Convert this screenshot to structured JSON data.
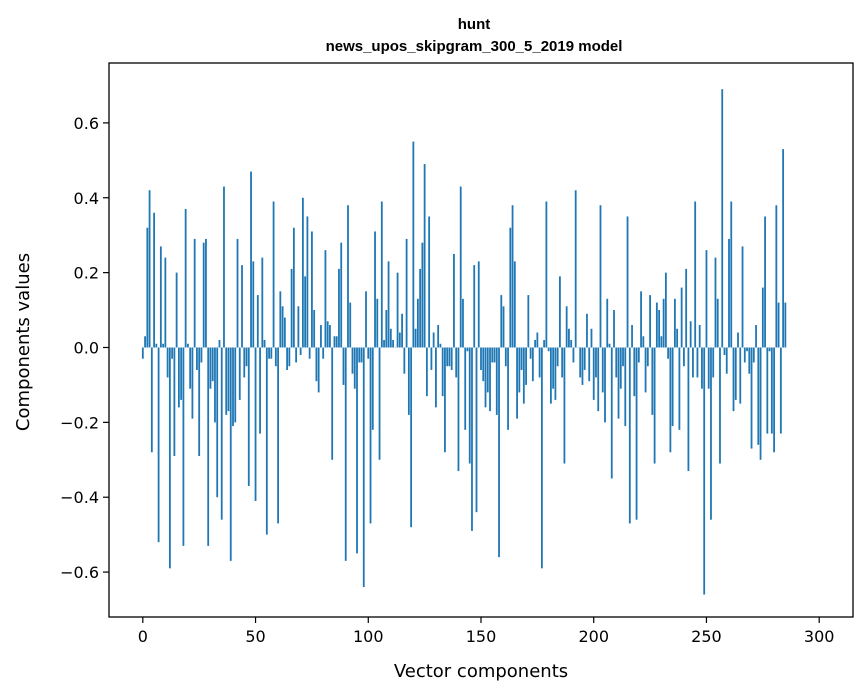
{
  "chart_data": {
    "type": "bar",
    "title_line1": "hunt",
    "title_line2": "news_upos_skipgram_300_5_2019 model",
    "xlabel": "Vector components",
    "ylabel": "Components values",
    "xlim": [
      -15,
      315
    ],
    "ylim": [
      -0.72,
      0.76
    ],
    "xticks": [
      0,
      50,
      100,
      150,
      200,
      250,
      300
    ],
    "yticks": [
      -0.6,
      -0.4,
      -0.2,
      0.0,
      0.2,
      0.4,
      0.6
    ],
    "xtick_labels": [
      "0",
      "50",
      "100",
      "150",
      "200",
      "250",
      "300"
    ],
    "ytick_labels": [
      "−0.6",
      "−0.4",
      "−0.2",
      "0.0",
      "0.2",
      "0.4",
      "0.6"
    ],
    "bar_color": "#1f77b4",
    "grid": false,
    "legend": "none",
    "values": [
      -0.03,
      0.03,
      0.32,
      0.42,
      -0.28,
      0.36,
      0.01,
      -0.52,
      0.27,
      0.01,
      0.24,
      -0.08,
      -0.59,
      -0.03,
      -0.29,
      0.2,
      -0.16,
      -0.14,
      -0.53,
      0.37,
      0.01,
      -0.11,
      -0.19,
      0.29,
      -0.06,
      -0.29,
      -0.04,
      0.28,
      0.29,
      -0.53,
      -0.11,
      -0.09,
      -0.2,
      -0.4,
      0.02,
      -0.46,
      0.43,
      -0.18,
      -0.17,
      -0.57,
      -0.21,
      -0.2,
      0.29,
      -0.14,
      0.22,
      -0.08,
      -0.05,
      -0.37,
      0.47,
      0.23,
      -0.41,
      0.14,
      -0.23,
      0.24,
      0.02,
      -0.5,
      -0.03,
      -0.03,
      0.39,
      -0.05,
      -0.47,
      0.15,
      0.11,
      0.08,
      -0.06,
      -0.05,
      0.21,
      0.32,
      -0.04,
      0.11,
      -0.02,
      0.4,
      0.19,
      0.35,
      -0.03,
      0.31,
      0.1,
      -0.09,
      -0.12,
      0.06,
      -0.03,
      0.26,
      0.07,
      0.06,
      -0.3,
      0.03,
      0.03,
      0.21,
      0.28,
      -0.1,
      -0.57,
      0.38,
      0.12,
      -0.07,
      -0.11,
      -0.55,
      -0.04,
      -0.04,
      -0.64,
      0.15,
      -0.03,
      -0.47,
      -0.22,
      0.31,
      0.13,
      -0.3,
      0.39,
      0.02,
      0.1,
      0.23,
      0.05,
      0.02,
      0.0,
      0.2,
      0.04,
      0.09,
      -0.07,
      0.29,
      -0.18,
      -0.48,
      0.55,
      0.05,
      0.13,
      0.21,
      0.28,
      0.49,
      -0.13,
      0.35,
      -0.06,
      0.04,
      -0.16,
      0.06,
      0.01,
      -0.13,
      -0.28,
      -0.05,
      -0.05,
      -0.06,
      0.25,
      -0.08,
      -0.33,
      0.43,
      0.13,
      -0.22,
      -0.01,
      -0.31,
      -0.49,
      0.22,
      -0.44,
      0.23,
      -0.06,
      -0.09,
      -0.16,
      -0.12,
      -0.17,
      -0.04,
      -0.04,
      -0.18,
      -0.56,
      0.14,
      0.11,
      -0.05,
      -0.22,
      0.32,
      0.38,
      0.23,
      -0.19,
      -0.12,
      -0.06,
      -0.15,
      -0.1,
      0.14,
      -0.03,
      -0.09,
      0.02,
      0.04,
      -0.08,
      -0.59,
      0.02,
      0.39,
      -0.01,
      -0.15,
      -0.11,
      -0.14,
      -0.05,
      0.19,
      -0.08,
      -0.31,
      0.11,
      0.05,
      0.02,
      -0.04,
      0.42,
      0.0,
      -0.08,
      -0.1,
      -0.06,
      0.09,
      -0.09,
      0.05,
      -0.14,
      -0.08,
      -0.17,
      0.38,
      -0.12,
      -0.2,
      0.13,
      0.01,
      -0.35,
      0.1,
      -0.08,
      -0.19,
      -0.11,
      -0.05,
      -0.21,
      0.35,
      -0.47,
      0.06,
      -0.13,
      -0.46,
      -0.04,
      0.15,
      0.03,
      -0.12,
      -0.05,
      0.14,
      -0.18,
      -0.31,
      0.12,
      0.1,
      0.03,
      0.13,
      0.2,
      -0.03,
      -0.28,
      -0.21,
      0.13,
      0.05,
      -0.22,
      0.16,
      -0.05,
      0.21,
      -0.33,
      0.07,
      -0.08,
      0.39,
      -0.08,
      0.06,
      -0.11,
      -0.66,
      0.26,
      -0.11,
      -0.46,
      -0.08,
      0.24,
      0.13,
      -0.31,
      0.69,
      -0.02,
      -0.07,
      0.29,
      0.39,
      -0.17,
      -0.14,
      0.04,
      -0.15,
      0.27,
      -0.04,
      -0.01,
      -0.07,
      -0.27,
      -0.04,
      0.06,
      -0.26,
      -0.3,
      0.16,
      0.35,
      -0.23,
      -0.01,
      -0.23,
      -0.28,
      0.38,
      0.12,
      -0.23,
      0.53,
      0.12
    ]
  }
}
